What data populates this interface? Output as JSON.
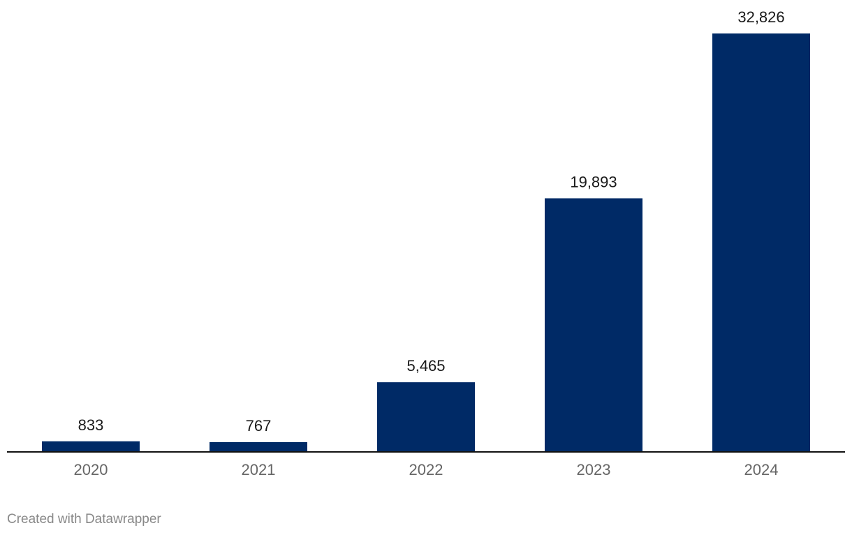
{
  "chart_data": {
    "type": "bar",
    "categories": [
      "2020",
      "2021",
      "2022",
      "2023",
      "2024"
    ],
    "values": [
      833,
      767,
      5465,
      19893,
      32826
    ],
    "value_labels": [
      "833",
      "767",
      "5,465",
      "19,893",
      "32,826"
    ],
    "title": "",
    "xlabel": "",
    "ylabel": "",
    "ylim": [
      0,
      32826
    ],
    "grid": false,
    "legend": "none",
    "bar_color": "#002a66",
    "axis_color": "#111111"
  },
  "footer": {
    "credit": "Created with Datawrapper"
  }
}
